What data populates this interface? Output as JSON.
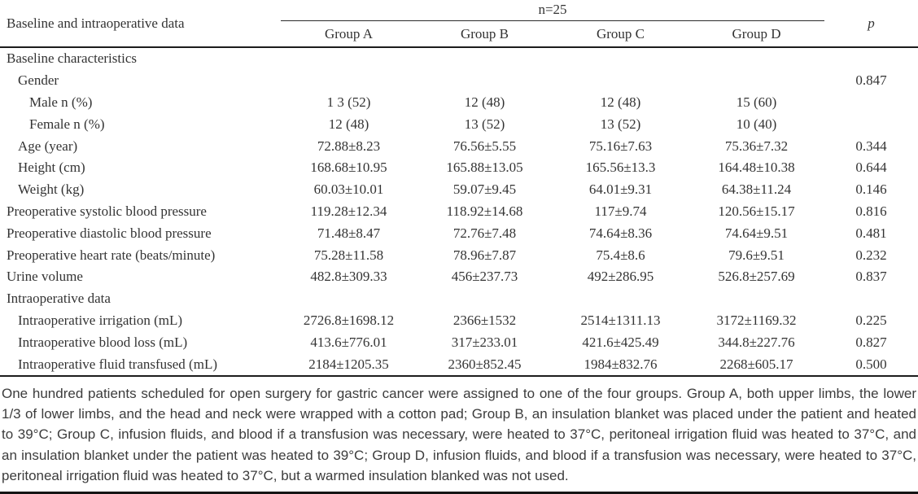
{
  "table": {
    "title_column": "Baseline and intraoperative data",
    "n_label": "n=25",
    "p_label": "p",
    "group_headers": [
      "Group A",
      "Group B",
      "Group C",
      "Group D"
    ],
    "rows": [
      {
        "label": "Baseline characteristics",
        "indent": 0,
        "values": [
          "",
          "",
          "",
          ""
        ],
        "p": ""
      },
      {
        "label": "Gender",
        "indent": 1,
        "values": [
          "",
          "",
          "",
          ""
        ],
        "p": "0.847"
      },
      {
        "label": "Male n (%)",
        "indent": 2,
        "values": [
          "1 3 (52)",
          "12 (48)",
          "12 (48)",
          "15 (60)"
        ],
        "p": ""
      },
      {
        "label": "Female n (%)",
        "indent": 2,
        "values": [
          "12 (48)",
          "13 (52)",
          "13 (52)",
          "10 (40)"
        ],
        "p": ""
      },
      {
        "label": "Age (year)",
        "indent": 1,
        "values": [
          "72.88±8.23",
          "76.56±5.55",
          "75.16±7.63",
          "75.36±7.32"
        ],
        "p": "0.344"
      },
      {
        "label": "Height (cm)",
        "indent": 1,
        "values": [
          "168.68±10.95",
          "165.88±13.05",
          "165.56±13.3",
          "164.48±10.38"
        ],
        "p": "0.644"
      },
      {
        "label": "Weight (kg)",
        "indent": 1,
        "values": [
          "60.03±10.01",
          "59.07±9.45",
          "64.01±9.31",
          "64.38±11.24"
        ],
        "p": "0.146"
      },
      {
        "label": "Preoperative systolic blood pressure",
        "indent": 0,
        "values": [
          "119.28±12.34",
          "118.92±14.68",
          "117±9.74",
          "120.56±15.17"
        ],
        "p": "0.816"
      },
      {
        "label": "Preoperative diastolic blood pressure",
        "indent": 0,
        "values": [
          "71.48±8.47",
          "72.76±7.48",
          "74.64±8.36",
          "74.64±9.51"
        ],
        "p": "0.481"
      },
      {
        "label": "Preoperative heart rate (beats/minute)",
        "indent": 0,
        "values": [
          "75.28±11.58",
          "78.96±7.87",
          "75.4±8.6",
          "79.6±9.51"
        ],
        "p": "0.232"
      },
      {
        "label": "Urine volume",
        "indent": 0,
        "values": [
          "482.8±309.33",
          "456±237.73",
          "492±286.95",
          "526.8±257.69"
        ],
        "p": "0.837"
      },
      {
        "label": "Intraoperative data",
        "indent": 0,
        "values": [
          "",
          "",
          "",
          ""
        ],
        "p": ""
      },
      {
        "label": "Intraoperative irrigation (mL)",
        "indent": 1,
        "values": [
          "2726.8±1698.12",
          "2366±1532",
          "2514±1311.13",
          "3172±1169.32"
        ],
        "p": "0.225"
      },
      {
        "label": "Intraoperative blood loss (mL)",
        "indent": 1,
        "values": [
          "413.6±776.01",
          "317±233.01",
          "421.6±425.49",
          "344.8±227.76"
        ],
        "p": "0.827"
      },
      {
        "label": "Intraoperative fluid transfused (mL)",
        "indent": 1,
        "values": [
          "2184±1205.35",
          "2360±852.45",
          "1984±832.76",
          "2268±605.17"
        ],
        "p": "0.500"
      }
    ]
  },
  "footnote": {
    "text": "One hundred patients scheduled for open surgery for gastric cancer were assigned to one of the four groups. Group A, both upper limbs, the lower 1/3 of lower limbs, and the head and neck were wrapped with a cotton pad; Group B, an insulation blanket was placed under the patient and heated to 39°C; Group C, infusion fluids, and blood if a transfusion was necessary, were heated to 37°C, peritoneal irrigation fluid was heated to 37°C, and an insulation blanket under the patient was heated to 39°C; Group D, infusion fluids, and blood if a transfusion was necessary, were heated to 37°C, peritoneal irrigation fluid was heated to 37°C, but a warmed insulation blanked was not used."
  },
  "colors": {
    "text": "#333333",
    "rule": "#1c1c1c",
    "background": "#ffffff"
  }
}
